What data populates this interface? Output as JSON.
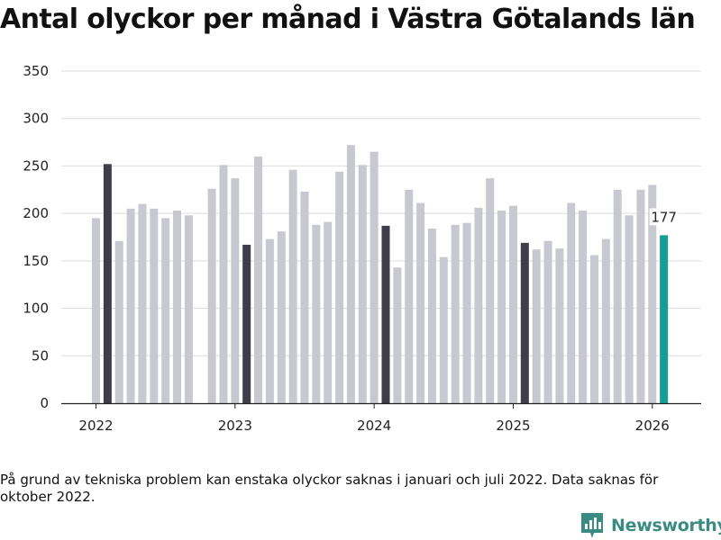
{
  "colors": {
    "background": "#ffffff",
    "bar_default": "#c8c8d0",
    "bar_january": "#3e3d49",
    "bar_latest": "#169e95",
    "grid": "#dddddd",
    "axis": "#222222",
    "brand": "#3a8c82"
  },
  "chart_data": {
    "type": "bar",
    "title": "Antal olyckor per månad i Västra Götalands län",
    "xlabel": "",
    "ylabel": "",
    "ylim": [
      0,
      350
    ],
    "yticks": [
      0,
      50,
      100,
      150,
      200,
      250,
      300,
      350
    ],
    "x_tick_labels": [
      "2022",
      "2023",
      "2024",
      "2025",
      "2026"
    ],
    "grid": true,
    "highlight_label": "177",
    "bars": [
      {
        "month": "2022-01",
        "value": 195,
        "style": "default"
      },
      {
        "month": "2022-02",
        "value": 252,
        "style": "january"
      },
      {
        "month": "2022-03",
        "value": 171,
        "style": "default"
      },
      {
        "month": "2022-04",
        "value": 205,
        "style": "default"
      },
      {
        "month": "2022-05",
        "value": 210,
        "style": "default"
      },
      {
        "month": "2022-06",
        "value": 205,
        "style": "default"
      },
      {
        "month": "2022-07",
        "value": 195,
        "style": "default"
      },
      {
        "month": "2022-08",
        "value": 203,
        "style": "default"
      },
      {
        "month": "2022-09",
        "value": 198,
        "style": "default"
      },
      {
        "month": "2022-10",
        "value": null,
        "style": "default"
      },
      {
        "month": "2022-11",
        "value": 226,
        "style": "default"
      },
      {
        "month": "2022-12",
        "value": 251,
        "style": "default"
      },
      {
        "month": "2023-01",
        "value": 237,
        "style": "default"
      },
      {
        "month": "2023-02",
        "value": 167,
        "style": "january"
      },
      {
        "month": "2023-03",
        "value": 260,
        "style": "default"
      },
      {
        "month": "2023-04",
        "value": 173,
        "style": "default"
      },
      {
        "month": "2023-05",
        "value": 181,
        "style": "default"
      },
      {
        "month": "2023-06",
        "value": 246,
        "style": "default"
      },
      {
        "month": "2023-07",
        "value": 223,
        "style": "default"
      },
      {
        "month": "2023-08",
        "value": 188,
        "style": "default"
      },
      {
        "month": "2023-09",
        "value": 191,
        "style": "default"
      },
      {
        "month": "2023-10",
        "value": 244,
        "style": "default"
      },
      {
        "month": "2023-11",
        "value": 272,
        "style": "default"
      },
      {
        "month": "2023-12",
        "value": 251,
        "style": "default"
      },
      {
        "month": "2024-01",
        "value": 265,
        "style": "default"
      },
      {
        "month": "2024-02",
        "value": 187,
        "style": "january"
      },
      {
        "month": "2024-03",
        "value": 143,
        "style": "default"
      },
      {
        "month": "2024-04",
        "value": 225,
        "style": "default"
      },
      {
        "month": "2024-05",
        "value": 211,
        "style": "default"
      },
      {
        "month": "2024-06",
        "value": 184,
        "style": "default"
      },
      {
        "month": "2024-07",
        "value": 154,
        "style": "default"
      },
      {
        "month": "2024-08",
        "value": 188,
        "style": "default"
      },
      {
        "month": "2024-09",
        "value": 190,
        "style": "default"
      },
      {
        "month": "2024-10",
        "value": 206,
        "style": "default"
      },
      {
        "month": "2024-11",
        "value": 237,
        "style": "default"
      },
      {
        "month": "2024-12",
        "value": 203,
        "style": "default"
      },
      {
        "month": "2025-01",
        "value": 208,
        "style": "default"
      },
      {
        "month": "2025-02",
        "value": 169,
        "style": "january"
      },
      {
        "month": "2025-03",
        "value": 162,
        "style": "default"
      },
      {
        "month": "2025-04",
        "value": 171,
        "style": "default"
      },
      {
        "month": "2025-05",
        "value": 163,
        "style": "default"
      },
      {
        "month": "2025-06",
        "value": 211,
        "style": "default"
      },
      {
        "month": "2025-07",
        "value": 203,
        "style": "default"
      },
      {
        "month": "2025-08",
        "value": 156,
        "style": "default"
      },
      {
        "month": "2025-09",
        "value": 173,
        "style": "default"
      },
      {
        "month": "2025-10",
        "value": 225,
        "style": "default"
      },
      {
        "month": "2025-11",
        "value": 198,
        "style": "default"
      },
      {
        "month": "2025-12",
        "value": 225,
        "style": "default"
      },
      {
        "month": "2026-01",
        "value": 230,
        "style": "default"
      },
      {
        "month": "2026-02",
        "value": 177,
        "style": "latest"
      }
    ]
  },
  "footnote": "På grund av tekniska problem kan enstaka olyckor saknas i januari och juli 2022. Data saknas för oktober 2022.",
  "brand": {
    "name": "Newsworthy",
    "icon": "newsworthy-logo-icon"
  }
}
